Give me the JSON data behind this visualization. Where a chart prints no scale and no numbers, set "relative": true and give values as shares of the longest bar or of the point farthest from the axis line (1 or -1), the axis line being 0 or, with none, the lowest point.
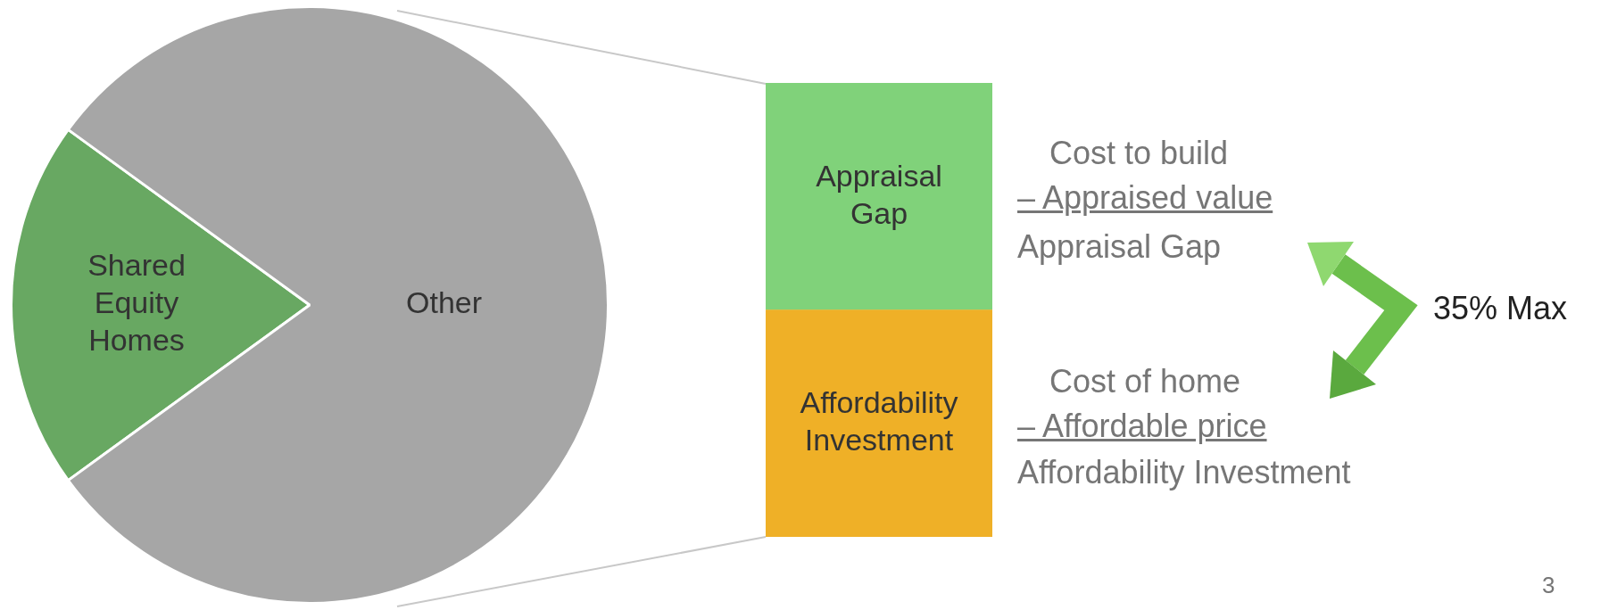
{
  "chart_data": [
    {
      "type": "pie",
      "categories": [
        "Shared Equity Homes",
        "Other"
      ],
      "values": [
        20,
        80
      ],
      "colors": [
        "#68a862",
        "#a6a6a6"
      ]
    },
    {
      "type": "bar",
      "stacked": true,
      "relative": true,
      "categories": [
        null
      ],
      "series": [
        {
          "name": "Affordability Investment",
          "color": "#efb027",
          "values": [
            0.5
          ]
        },
        {
          "name": "Appraisal Gap",
          "color": "#80d27a",
          "values": [
            0.5
          ]
        }
      ],
      "annotations": [
        "Cost to build",
        "– Appraised value",
        "Appraisal Gap",
        "Cost of home",
        "– Affordable price",
        "Affordability Investment",
        "35% Max",
        "3"
      ]
    }
  ]
}
